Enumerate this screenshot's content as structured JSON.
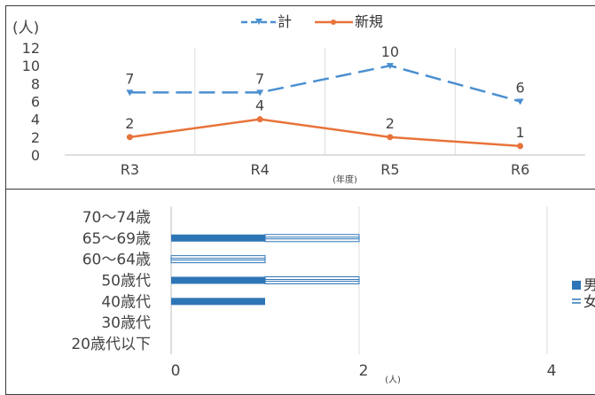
{
  "chart_data": [
    {
      "type": "line",
      "ylabel": "(人)",
      "xlabel": "(年度)",
      "categories": [
        "R3",
        "R4",
        "R5",
        "R6"
      ],
      "ylim": [
        0,
        12
      ],
      "yticks": [
        0,
        2,
        4,
        6,
        8,
        10,
        12
      ],
      "grid": true,
      "legend_position": "top",
      "series": [
        {
          "name": "計",
          "values": [
            7,
            7,
            10,
            6
          ],
          "color": "#4a8fd0",
          "style": "dashed",
          "labels": [
            "7",
            "7",
            "10",
            "6"
          ]
        },
        {
          "name": "新規",
          "values": [
            2,
            4,
            2,
            1
          ],
          "color": "#e8733a",
          "style": "solid",
          "labels": [
            "2",
            "4",
            "2",
            "1"
          ]
        }
      ]
    },
    {
      "type": "bar",
      "orientation": "horizontal",
      "xlabel": "(人)",
      "categories": [
        "70〜74歳",
        "65〜69歳",
        "60〜64歳",
        "50歳代",
        "40歳代",
        "30歳代",
        "20歳代以下"
      ],
      "xlim": [
        0,
        4
      ],
      "xticks": [
        "0",
        "2",
        "4"
      ],
      "stacked": true,
      "legend_position": "right",
      "series": [
        {
          "name": "男",
          "values": [
            0,
            1,
            0,
            1,
            1,
            0,
            0
          ],
          "color": "#2e75b6",
          "style": "solid"
        },
        {
          "name": "女",
          "values": [
            0,
            1,
            1,
            1,
            0,
            0,
            0
          ],
          "color": "#2e75b6",
          "style": "striped"
        }
      ]
    }
  ]
}
